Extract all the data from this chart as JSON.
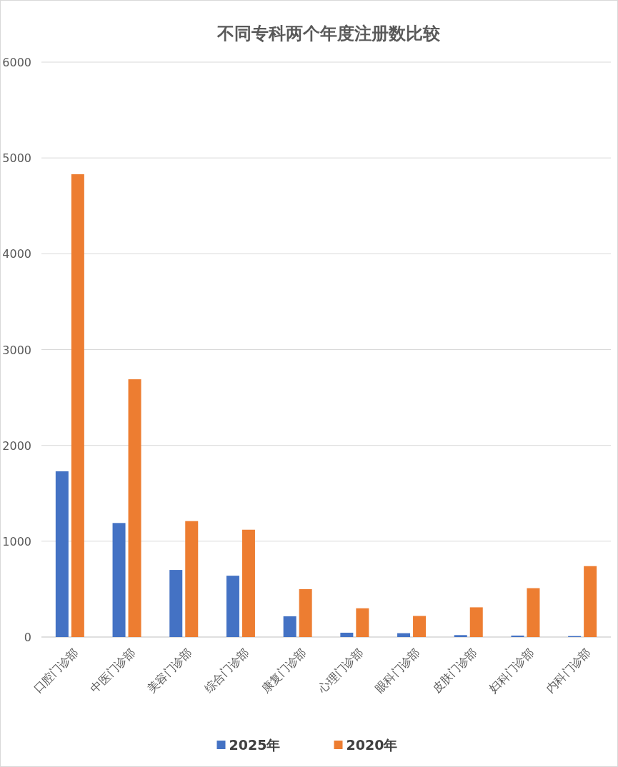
{
  "chart_data": {
    "type": "bar",
    "title": "不同专科两个年度注册数比较",
    "categories": [
      "口腔门诊部",
      "中医门诊部",
      "美容门诊部",
      "综合门诊部",
      "康复门诊部",
      "心理门诊部",
      "眼科门诊部",
      "皮肤门诊部",
      "妇科门诊部",
      "内科门诊部"
    ],
    "series": [
      {
        "name": "2025年",
        "color": "#4472c4",
        "values": [
          1730,
          1190,
          700,
          640,
          216,
          45,
          40,
          20,
          15,
          10
        ]
      },
      {
        "name": "2020年",
        "color": "#ed7d31",
        "values": [
          4830,
          2690,
          1210,
          1120,
          500,
          300,
          220,
          310,
          510,
          740
        ]
      }
    ],
    "ylim": [
      0,
      6000
    ],
    "yticks": [
      0,
      1000,
      2000,
      3000,
      4000,
      5000,
      6000
    ],
    "grid": "y",
    "legend": "bottom"
  }
}
